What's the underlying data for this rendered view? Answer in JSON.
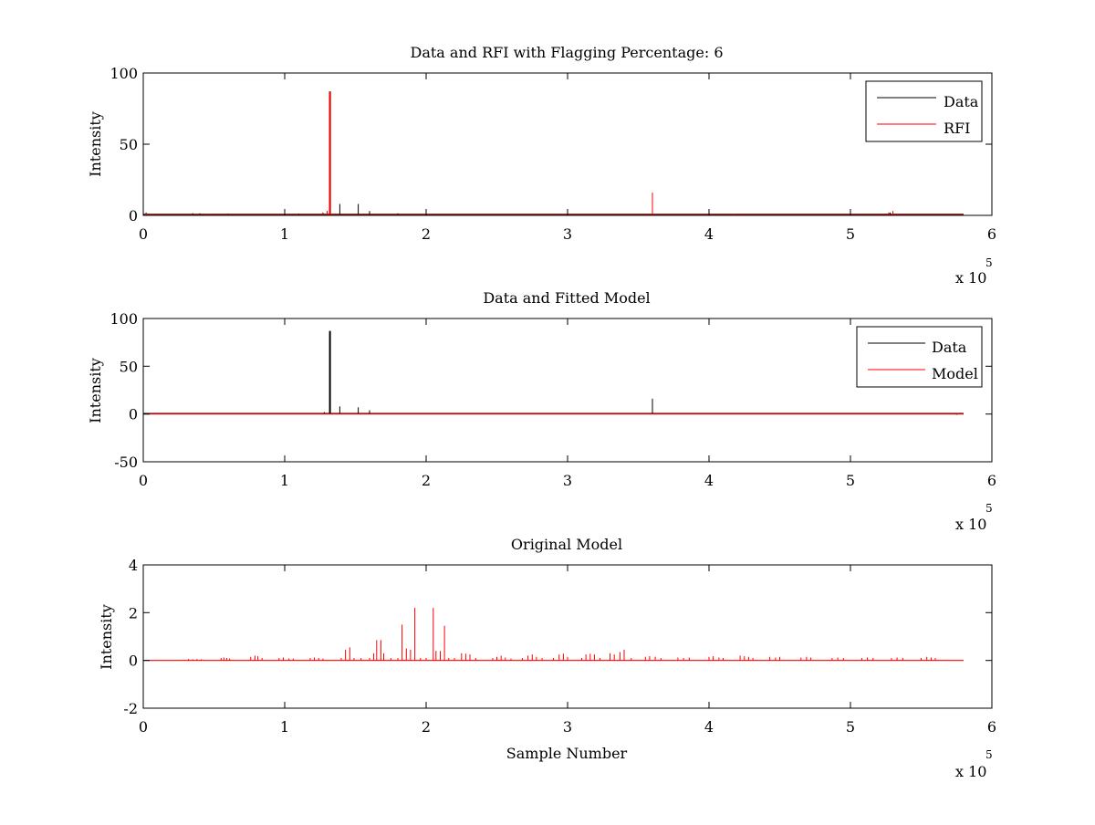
{
  "figure": {
    "background": "#ffffff"
  },
  "chart_data": [
    {
      "type": "line",
      "title": "Data and RFI with Flagging Percentage: 6",
      "xlabel": "",
      "ylabel": "Intensity",
      "xlim": [
        0,
        600000
      ],
      "ylim": [
        0,
        100
      ],
      "xticks": [
        0,
        100000,
        200000,
        300000,
        400000,
        500000,
        600000
      ],
      "xtick_labels": [
        "0",
        "1",
        "2",
        "3",
        "4",
        "5",
        "6"
      ],
      "yticks": [
        0,
        50,
        100
      ],
      "ytick_labels": [
        "0",
        "50",
        "100"
      ],
      "x_multiplier": {
        "base": "x 10",
        "exponent": "5"
      },
      "grid": false,
      "legend": {
        "position": "top-right",
        "entries": [
          "Data",
          "RFI"
        ]
      },
      "series": [
        {
          "name": "Data",
          "color": "#000000",
          "baseline": 0.8,
          "xmax": 580000,
          "spikes": [
            [
              2000,
              2
            ],
            [
              35000,
              1.5
            ],
            [
              40000,
              1.5
            ],
            [
              60000,
              1.2
            ],
            [
              110000,
              1.2
            ],
            [
              127000,
              2
            ],
            [
              130000,
              3
            ],
            [
              132000,
              87
            ],
            [
              139000,
              8
            ],
            [
              152000,
              8
            ],
            [
              160000,
              3
            ],
            [
              180000,
              1.5
            ],
            [
              360000,
              16
            ],
            [
              528000,
              2
            ]
          ]
        },
        {
          "name": "RFI",
          "color": "#ff0000",
          "baseline": 0.3,
          "xmax": 580000,
          "spikes": [
            [
              2000,
              1.5
            ],
            [
              45000,
              1
            ],
            [
              127000,
              2
            ],
            [
              130000,
              3
            ],
            [
              132000,
              87
            ],
            [
              360000,
              16
            ],
            [
              418000,
              1
            ],
            [
              527000,
              2
            ],
            [
              530000,
              3
            ]
          ]
        }
      ]
    },
    {
      "type": "line",
      "title": "Data and Fitted Model",
      "xlabel": "",
      "ylabel": "Intensity",
      "xlim": [
        0,
        600000
      ],
      "ylim": [
        -50,
        100
      ],
      "xticks": [
        0,
        100000,
        200000,
        300000,
        400000,
        500000,
        600000
      ],
      "xtick_labels": [
        "0",
        "1",
        "2",
        "3",
        "4",
        "5",
        "6"
      ],
      "yticks": [
        -50,
        0,
        50,
        100
      ],
      "ytick_labels": [
        "-50",
        "0",
        "50",
        "100"
      ],
      "x_multiplier": {
        "base": "x 10",
        "exponent": "5"
      },
      "grid": false,
      "legend": {
        "position": "top-right",
        "entries": [
          "Data",
          "Model"
        ]
      },
      "series": [
        {
          "name": "Data",
          "color": "#000000",
          "baseline": 0.5,
          "xmax": 580000,
          "spikes": [
            [
              128000,
              2
            ],
            [
              132000,
              87
            ],
            [
              139000,
              8
            ],
            [
              152000,
              7
            ],
            [
              160000,
              4
            ],
            [
              360000,
              16
            ]
          ]
        },
        {
          "name": "Model",
          "color": "#ff0000",
          "baseline": 0,
          "xmax": 580000,
          "spikes": [
            [
              575000,
              -1
            ]
          ]
        }
      ]
    },
    {
      "type": "line",
      "title": "Original Model",
      "xlabel": "Sample Number",
      "ylabel": "Intensity",
      "xlim": [
        0,
        600000
      ],
      "ylim": [
        -2,
        4
      ],
      "xticks": [
        0,
        100000,
        200000,
        300000,
        400000,
        500000,
        600000
      ],
      "xtick_labels": [
        "0",
        "1",
        "2",
        "3",
        "4",
        "5",
        "6"
      ],
      "yticks": [
        -2,
        0,
        2,
        4
      ],
      "ytick_labels": [
        "-2",
        "0",
        "2",
        "4"
      ],
      "x_multiplier": {
        "base": "x 10",
        "exponent": "5"
      },
      "grid": false,
      "series": [
        {
          "color": "#ff0000",
          "baseline": 0,
          "xmax": 580000,
          "spikes": [
            [
              32000,
              0.06
            ],
            [
              35000,
              0.05
            ],
            [
              38000,
              0.06
            ],
            [
              41000,
              0.05
            ],
            [
              55000,
              0.1
            ],
            [
              57000,
              0.12
            ],
            [
              59000,
              0.1
            ],
            [
              61000,
              0.08
            ],
            [
              76000,
              0.15
            ],
            [
              79000,
              0.2
            ],
            [
              81000,
              0.18
            ],
            [
              84000,
              0.1
            ],
            [
              96000,
              0.1
            ],
            [
              99000,
              0.12
            ],
            [
              103000,
              0.08
            ],
            [
              106000,
              0.08
            ],
            [
              118000,
              0.1
            ],
            [
              121000,
              0.12
            ],
            [
              124000,
              0.1
            ],
            [
              127000,
              0.08
            ],
            [
              140000,
              0.1
            ],
            [
              143000,
              0.45
            ],
            [
              146000,
              0.55
            ],
            [
              149000,
              0.1
            ],
            [
              154000,
              0.1
            ],
            [
              160000,
              0.1
            ],
            [
              163000,
              0.3
            ],
            [
              165000,
              0.85
            ],
            [
              168000,
              0.85
            ],
            [
              170000,
              0.3
            ],
            [
              175000,
              0.1
            ],
            [
              180000,
              0.1
            ],
            [
              183000,
              1.5
            ],
            [
              186000,
              0.5
            ],
            [
              189000,
              0.45
            ],
            [
              192000,
              2.2
            ],
            [
              196000,
              0.1
            ],
            [
              200000,
              0.1
            ],
            [
              205000,
              2.2
            ],
            [
              207000,
              0.4
            ],
            [
              210000,
              0.4
            ],
            [
              213000,
              1.45
            ],
            [
              216000,
              0.1
            ],
            [
              220000,
              0.1
            ],
            [
              225000,
              0.3
            ],
            [
              228000,
              0.28
            ],
            [
              231000,
              0.25
            ],
            [
              235000,
              0.1
            ],
            [
              247000,
              0.1
            ],
            [
              250000,
              0.15
            ],
            [
              253000,
              0.2
            ],
            [
              256000,
              0.12
            ],
            [
              260000,
              0.08
            ],
            [
              268000,
              0.1
            ],
            [
              272000,
              0.2
            ],
            [
              275000,
              0.25
            ],
            [
              278000,
              0.15
            ],
            [
              282000,
              0.1
            ],
            [
              290000,
              0.1
            ],
            [
              294000,
              0.25
            ],
            [
              297000,
              0.28
            ],
            [
              300000,
              0.15
            ],
            [
              310000,
              0.1
            ],
            [
              313000,
              0.25
            ],
            [
              316000,
              0.28
            ],
            [
              319000,
              0.25
            ],
            [
              323000,
              0.1
            ],
            [
              330000,
              0.3
            ],
            [
              333000,
              0.25
            ],
            [
              337000,
              0.35
            ],
            [
              340000,
              0.45
            ],
            [
              345000,
              0.1
            ],
            [
              355000,
              0.15
            ],
            [
              358000,
              0.18
            ],
            [
              362000,
              0.15
            ],
            [
              366000,
              0.1
            ],
            [
              378000,
              0.12
            ],
            [
              382000,
              0.1
            ],
            [
              386000,
              0.12
            ],
            [
              400000,
              0.15
            ],
            [
              403000,
              0.18
            ],
            [
              407000,
              0.12
            ],
            [
              410000,
              0.1
            ],
            [
              422000,
              0.2
            ],
            [
              425000,
              0.18
            ],
            [
              428000,
              0.15
            ],
            [
              431000,
              0.1
            ],
            [
              443000,
              0.15
            ],
            [
              447000,
              0.12
            ],
            [
              450000,
              0.15
            ],
            [
              465000,
              0.12
            ],
            [
              469000,
              0.15
            ],
            [
              472000,
              0.12
            ],
            [
              487000,
              0.1
            ],
            [
              491000,
              0.12
            ],
            [
              495000,
              0.1
            ],
            [
              508000,
              0.1
            ],
            [
              512000,
              0.12
            ],
            [
              516000,
              0.1
            ],
            [
              529000,
              0.1
            ],
            [
              533000,
              0.12
            ],
            [
              537000,
              0.1
            ],
            [
              550000,
              0.1
            ],
            [
              554000,
              0.15
            ],
            [
              557000,
              0.12
            ],
            [
              560000,
              0.1
            ]
          ]
        }
      ]
    }
  ]
}
